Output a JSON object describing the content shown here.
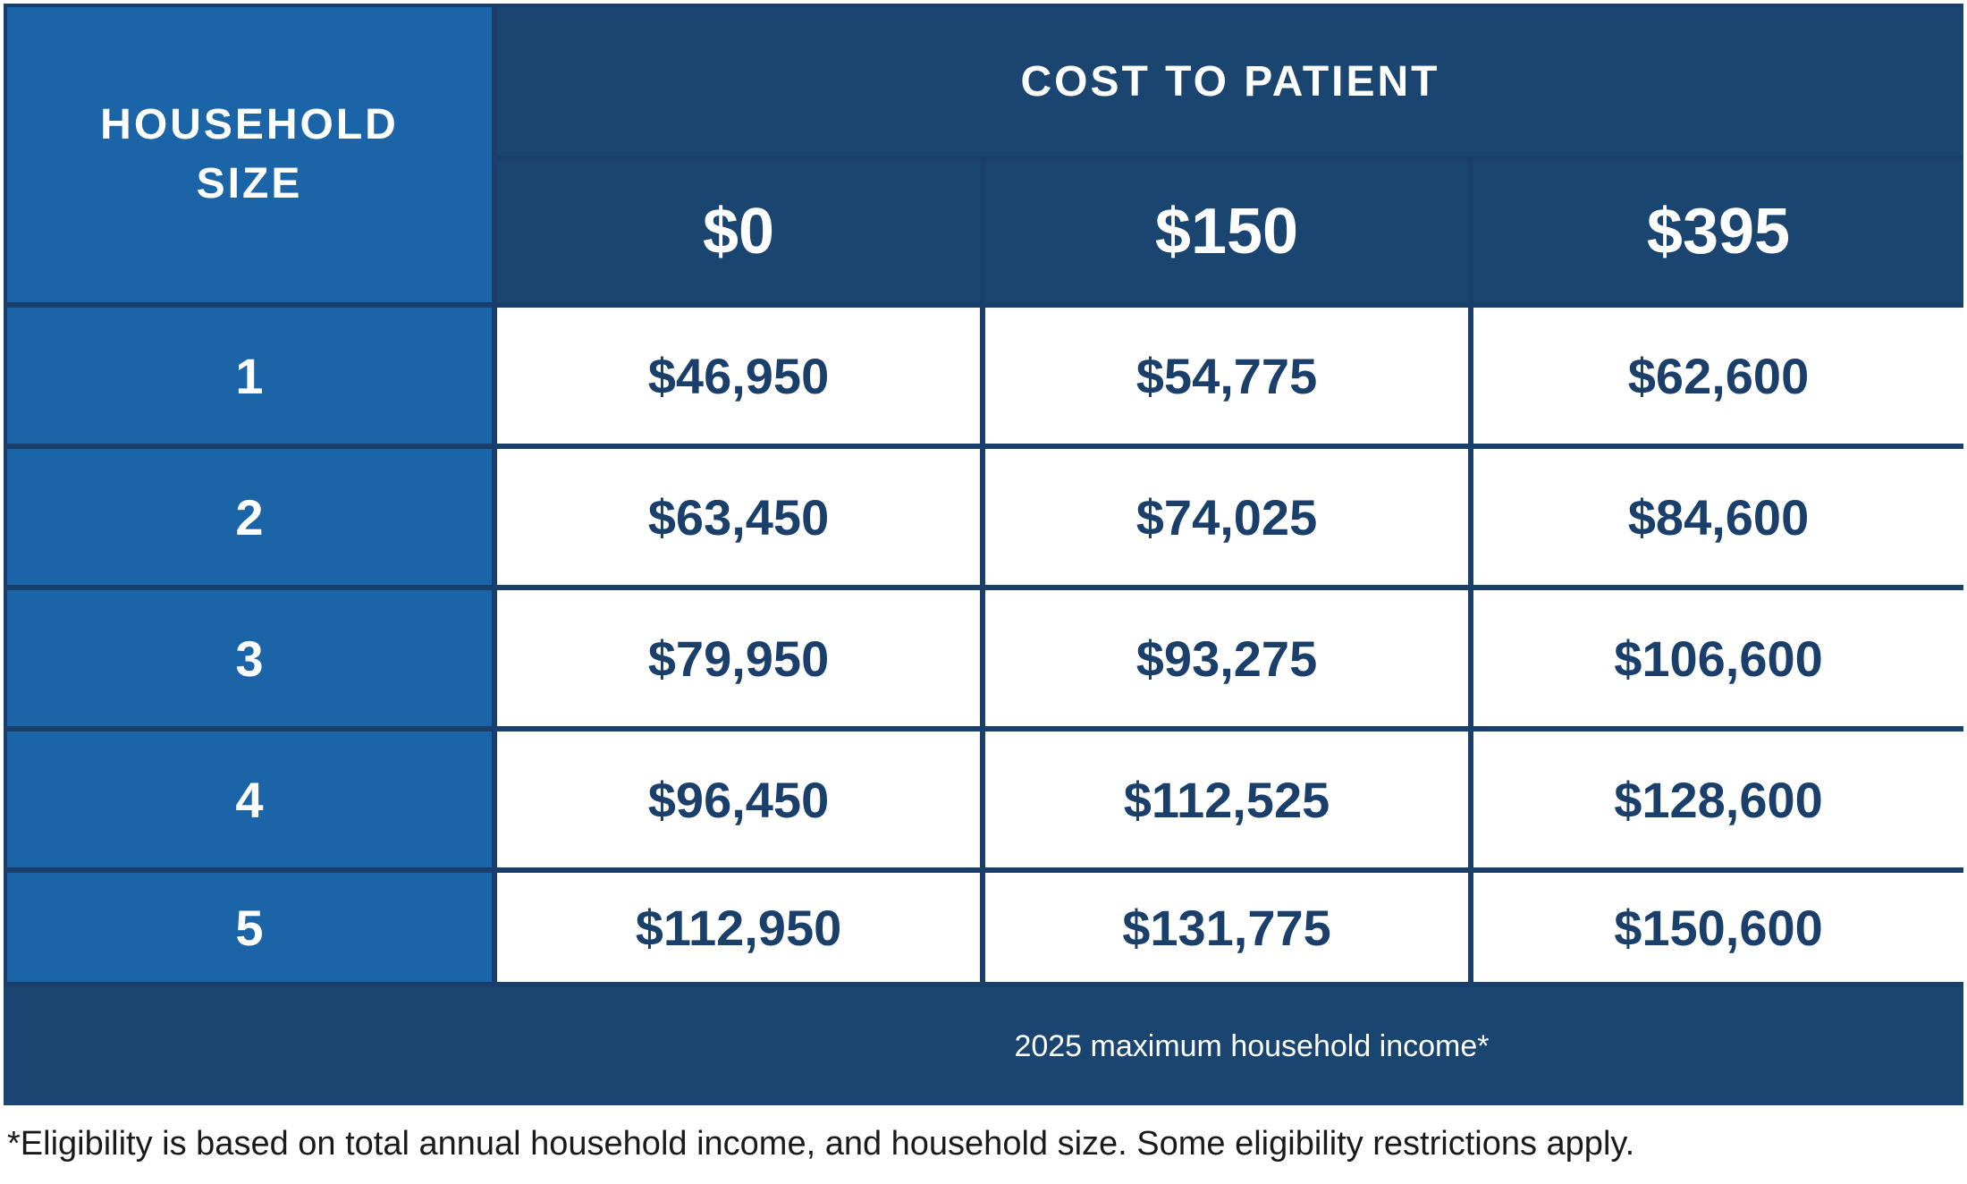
{
  "chart_data": {
    "type": "table",
    "row_header": "HOUSEHOLD SIZE",
    "column_group_header": "COST TO PATIENT",
    "columns": [
      "$0",
      "$150",
      "$395"
    ],
    "rows": [
      {
        "size": "1",
        "values": [
          "$46,950",
          "$54,775",
          "$62,600"
        ]
      },
      {
        "size": "2",
        "values": [
          "$63,450",
          "$74,025",
          "$84,600"
        ]
      },
      {
        "size": "3",
        "values": [
          "$79,950",
          "$93,275",
          "$106,600"
        ]
      },
      {
        "size": "4",
        "values": [
          "$96,450",
          "$112,525",
          "$128,600"
        ]
      },
      {
        "size": "5",
        "values": [
          "$112,950",
          "$131,775",
          "$150,600"
        ]
      }
    ],
    "caption": "2025 maximum household income*"
  },
  "header": {
    "household_line1": "HOUSEHOLD",
    "household_line2": "SIZE",
    "cost_to_patient": "COST TO PATIENT"
  },
  "footnote": "*Eligibility is based on total annual household income, and household size. Some eligibility restrictions apply.",
  "colors": {
    "navy": "#1a4570",
    "bright_blue": "#1c64a8",
    "cell_text": "#1a3f6b",
    "white": "#ffffff"
  }
}
